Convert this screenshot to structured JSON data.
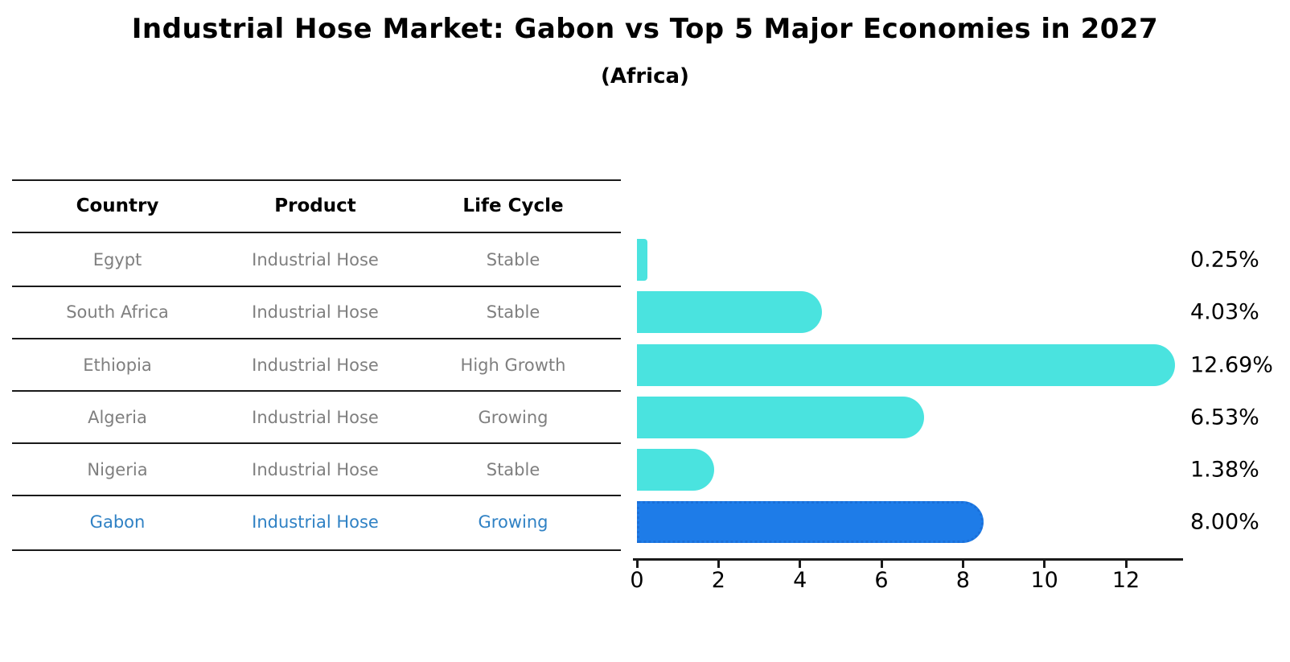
{
  "title": "Industrial Hose Market: Gabon vs Top 5 Major Economies in 2027",
  "subtitle": "(Africa)",
  "table": {
    "headers": [
      "Country",
      "Product",
      "Life Cycle"
    ],
    "rows": [
      {
        "country": "Egypt",
        "product": "Industrial Hose",
        "life_cycle": "Stable",
        "highlight": false
      },
      {
        "country": "South Africa",
        "product": "Industrial Hose",
        "life_cycle": "Stable",
        "highlight": false
      },
      {
        "country": "Ethiopia",
        "product": "Industrial Hose",
        "life_cycle": "High Growth",
        "highlight": false
      },
      {
        "country": "Algeria",
        "product": "Industrial Hose",
        "life_cycle": "Growing",
        "highlight": false
      },
      {
        "country": "Nigeria",
        "product": "Industrial Hose",
        "life_cycle": "Stable",
        "highlight": false
      },
      {
        "country": "Gabon",
        "product": "Industrial Hose",
        "life_cycle": "Growing",
        "highlight": true
      }
    ]
  },
  "chart_data": {
    "type": "bar",
    "orientation": "horizontal",
    "title": "Industrial Hose Market: Gabon vs Top 5 Major Economies in 2027",
    "subtitle": "(Africa)",
    "categories": [
      "Egypt",
      "South Africa",
      "Ethiopia",
      "Algeria",
      "Nigeria",
      "Gabon"
    ],
    "values": [
      0.25,
      4.03,
      12.69,
      6.53,
      1.38,
      8.0
    ],
    "value_labels": [
      "0.25%",
      "4.03%",
      "12.69%",
      "6.53%",
      "1.38%",
      "8.00%"
    ],
    "x_ticks": [
      0,
      2,
      4,
      6,
      8,
      10,
      12
    ],
    "xlim": [
      0,
      13.4
    ],
    "grid": false,
    "legend": "none",
    "bar_color": "#4ae3df",
    "highlight_index": 5,
    "highlight_bar_color": "#1e7ce8",
    "highlight_text_color": "#2f81c4",
    "axis_color": "#1a1a1a",
    "text_color_muted": "#7f7f7f"
  }
}
